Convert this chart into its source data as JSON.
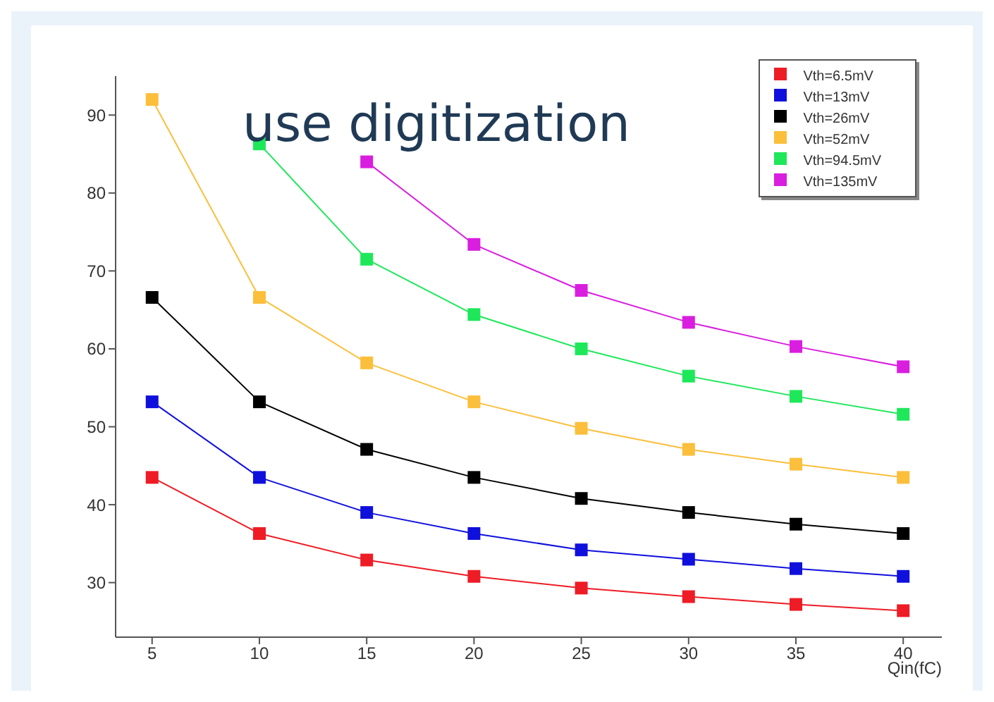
{
  "chart_data": {
    "type": "line",
    "xlabel": "Qin(fC)",
    "annotations": [
      "use digitization"
    ],
    "x": [
      5,
      10,
      15,
      20,
      25,
      30,
      35,
      40
    ],
    "xlim": [
      3.3,
      41.8
    ],
    "xticks": [
      5,
      10,
      15,
      20,
      25,
      30,
      35,
      40
    ],
    "ylim": [
      23,
      95
    ],
    "yticks": [
      30,
      40,
      50,
      60,
      70,
      80,
      90
    ],
    "grid": false,
    "legend": "top right",
    "marker": "square",
    "line_style": "solid",
    "series": [
      {
        "name": "Vth=6.5mV",
        "color": "#ee1c25",
        "values": [
          43.5,
          36.3,
          32.9,
          30.8,
          29.3,
          28.2,
          27.2,
          26.4
        ]
      },
      {
        "name": "Vth=13mV",
        "color": "#1010dd",
        "values": [
          53.2,
          43.5,
          39.0,
          36.3,
          34.2,
          33.0,
          31.8,
          30.8
        ]
      },
      {
        "name": "Vth=26mV",
        "color": "#000000",
        "values": [
          66.6,
          53.2,
          47.1,
          43.5,
          40.8,
          39.0,
          37.5,
          36.3
        ]
      },
      {
        "name": "Vth=52mV",
        "color": "#fbbf3c",
        "values": [
          92.0,
          66.6,
          58.2,
          53.2,
          49.8,
          47.1,
          45.2,
          43.5
        ]
      },
      {
        "name": "Vth=94.5mV",
        "color": "#1ee85a",
        "values": [
          null,
          86.3,
          71.5,
          64.4,
          60.0,
          56.5,
          53.9,
          51.6
        ]
      },
      {
        "name": "Vth=135mV",
        "color": "#d91ee0",
        "values": [
          null,
          null,
          84.0,
          73.4,
          67.5,
          63.4,
          60.3,
          57.7
        ]
      }
    ]
  }
}
